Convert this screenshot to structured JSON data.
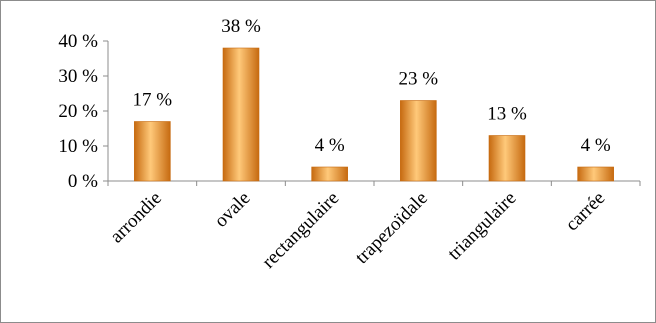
{
  "chart_data": {
    "type": "bar",
    "categories": [
      "arrondie",
      "ovale",
      "rectangulaire",
      "trapezoïdale",
      "triangulaire",
      "carrée"
    ],
    "values": [
      17,
      38,
      4,
      23,
      13,
      4
    ],
    "data_labels": [
      "17 %",
      "38 %",
      "4 %",
      "23 %",
      "13 %",
      "4 %"
    ],
    "y_ticks": [
      0,
      10,
      20,
      30,
      40
    ],
    "y_tick_labels": [
      "0 %",
      "10 %",
      "20 %",
      "30 %",
      "40 %"
    ],
    "ylim": [
      0,
      40
    ],
    "grid": false,
    "legend": "none",
    "bar_color": "#f0a030",
    "bar_color_dark": "#c66a10",
    "bar_color_light": "#ffc97a"
  }
}
